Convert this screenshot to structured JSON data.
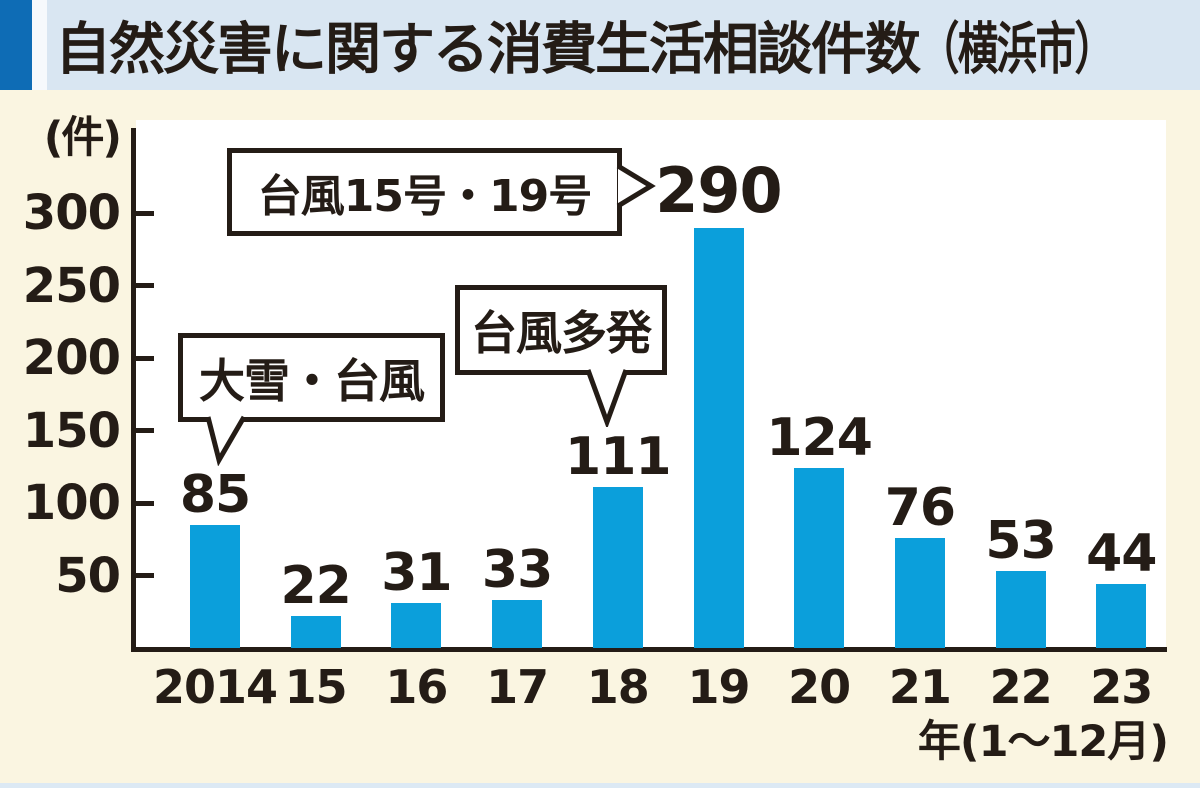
{
  "title": {
    "main": "自然災害に関する消費生活相談件数",
    "region": "（横浜市）"
  },
  "chart_data": {
    "type": "bar",
    "title": "自然災害に関する消費生活相談件数（横浜市）",
    "unit_label": "(件)",
    "xlabel": "年(1〜12月)",
    "categories": [
      "2014",
      "15",
      "16",
      "17",
      "18",
      "19",
      "20",
      "21",
      "22",
      "23"
    ],
    "values": [
      85,
      22,
      31,
      33,
      111,
      290,
      124,
      76,
      53,
      44
    ],
    "ylim": [
      0,
      300
    ],
    "yticks": [
      300,
      250,
      200,
      150,
      100,
      50
    ],
    "grid": false,
    "legend": "none",
    "bar_color": "#0b9fdb",
    "annotations": [
      {
        "text": "大雪・台風",
        "target_category": "2014",
        "target_value": 85
      },
      {
        "text": "台風多発",
        "target_category": "18",
        "target_value": 111
      },
      {
        "text": "台風15号・19号",
        "target_category": "19",
        "target_value": 290
      }
    ]
  },
  "colors": {
    "background": "#faf5e1",
    "plot_background": "#ffffff",
    "title_panel": "#d9e6f2",
    "title_accent": "#0e6cb5",
    "bar": "#0b9fdb",
    "ink": "#241c16",
    "bottom_strip": "#dce9f4"
  }
}
